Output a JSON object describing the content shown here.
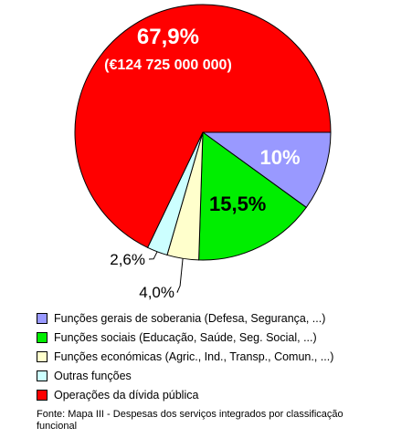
{
  "chart_data": {
    "type": "pie",
    "slices": [
      {
        "label": "Funções gerais de soberania (Defesa, Segurança, ...)",
        "value": 10.0,
        "value_label": "10%",
        "color": "#9999ff"
      },
      {
        "label": "Funções sociais (Educação, Saúde, Seg. Social, ...)",
        "value": 15.5,
        "value_label": "15,5%",
        "color": "#00ee00"
      },
      {
        "label": "Funções económicas (Agric., Ind., Transp., Comun., ...)",
        "value": 4.0,
        "value_label": "4,0%",
        "color": "#ffffcc"
      },
      {
        "label": "Outras funções",
        "value": 2.6,
        "value_label": "2,6%",
        "color": "#ccffff"
      },
      {
        "label": "Operações da dívida pública",
        "value": 67.9,
        "value_label": "67,9%",
        "value_sublabel": "(€124 725 000 000)",
        "color": "#ff0000"
      }
    ],
    "legend_position": "bottom",
    "source": "Fonte: Mapa III - Despesas dos serviços integrados por classificação funcional"
  }
}
